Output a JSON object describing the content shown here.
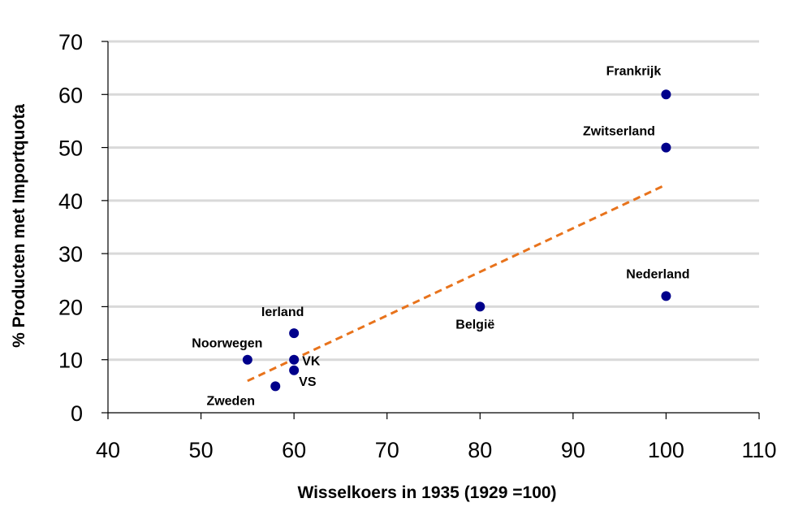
{
  "chart_data": {
    "type": "scatter",
    "title": "",
    "xlabel": "Wisselkoers in 1935 (1929 =100)",
    "ylabel": "% Producten met Importquota",
    "xlim": [
      40,
      110
    ],
    "ylim": [
      0,
      70
    ],
    "xticks": [
      "40",
      "50",
      "60",
      "70",
      "80",
      "90",
      "100",
      "110"
    ],
    "yticks": [
      "0",
      "10",
      "20",
      "30",
      "40",
      "50",
      "60",
      "70"
    ],
    "grid": "horizontal",
    "legend": "none",
    "colors": {
      "points": "#00008B",
      "trend": "#E8731C",
      "grid": "#D9D9D9"
    },
    "points": [
      {
        "label": "Frankrijk",
        "x": 100,
        "y": 60
      },
      {
        "label": "Zwitserland",
        "x": 100,
        "y": 50
      },
      {
        "label": "Nederland",
        "x": 100,
        "y": 22
      },
      {
        "label": "België",
        "x": 80,
        "y": 20
      },
      {
        "label": "Ierland",
        "x": 60,
        "y": 15
      },
      {
        "label": "Noorwegen",
        "x": 55,
        "y": 10
      },
      {
        "label": "VK",
        "x": 60,
        "y": 10
      },
      {
        "label": "VS",
        "x": 60,
        "y": 8
      },
      {
        "label": "Zweden",
        "x": 58,
        "y": 5
      }
    ],
    "trendline": {
      "style": "dashed",
      "from": {
        "x": 55,
        "y": 6
      },
      "to": {
        "x": 100,
        "y": 43
      }
    }
  }
}
